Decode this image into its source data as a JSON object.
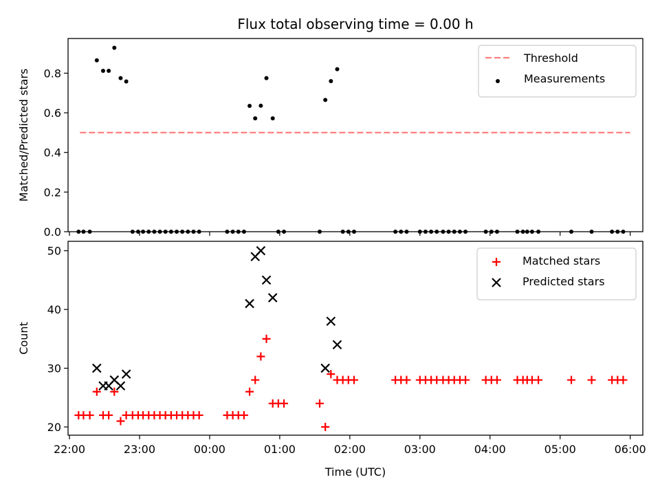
{
  "chart_data": [
    {
      "type": "scatter",
      "title": "Flux total observing time = 0.00 h",
      "xlabel": "",
      "ylabel": "Matched/Predicted stars",
      "ylim": [
        0,
        0.975
      ],
      "yticks": [
        "0.0",
        "0.2",
        "0.4",
        "0.6",
        "0.8"
      ],
      "ytick_values": [
        0,
        0.2,
        0.4,
        0.6,
        0.8
      ],
      "xlim": [
        21.98,
        30.18
      ],
      "x_units": "hours since 00:00 of first night (x > 24 means next day)",
      "grid": false,
      "legend": {
        "placement": "upper right",
        "entries": [
          "Threshold",
          "Measurements"
        ]
      },
      "threshold": {
        "name": "Threshold",
        "x": [
          22.15,
          30.0
        ],
        "y": 0.5,
        "color": "#ff7f7f",
        "style": "dashed"
      },
      "series": [
        {
          "name": "Measurements",
          "color": "#000000",
          "marker": "dot",
          "points": [
            [
              22.13,
              0
            ],
            [
              22.2,
              0
            ],
            [
              22.29,
              0
            ],
            [
              22.39,
              0.865
            ],
            [
              22.48,
              0.812
            ],
            [
              22.56,
              0.812
            ],
            [
              22.64,
              0.928
            ],
            [
              22.73,
              0.775
            ],
            [
              22.81,
              0.758
            ],
            [
              22.9,
              0
            ],
            [
              22.98,
              0
            ],
            [
              23.05,
              0
            ],
            [
              23.13,
              0
            ],
            [
              23.21,
              0
            ],
            [
              23.29,
              0
            ],
            [
              23.37,
              0
            ],
            [
              23.45,
              0
            ],
            [
              23.53,
              0
            ],
            [
              23.61,
              0
            ],
            [
              23.69,
              0
            ],
            [
              23.77,
              0
            ],
            [
              23.85,
              0
            ],
            [
              24.25,
              0
            ],
            [
              24.33,
              0
            ],
            [
              24.41,
              0
            ],
            [
              24.49,
              0
            ],
            [
              24.57,
              0.635
            ],
            [
              24.65,
              0.572
            ],
            [
              24.73,
              0.636
            ],
            [
              24.81,
              0.775
            ],
            [
              24.9,
              0.572
            ],
            [
              24.98,
              0
            ],
            [
              25.06,
              0
            ],
            [
              25.57,
              0
            ],
            [
              25.65,
              0.665
            ],
            [
              25.73,
              0.76
            ],
            [
              25.82,
              0.82
            ],
            [
              25.9,
              0
            ],
            [
              25.98,
              0
            ],
            [
              26.06,
              0
            ],
            [
              26.65,
              0
            ],
            [
              26.73,
              0
            ],
            [
              26.81,
              0
            ],
            [
              27.0,
              0
            ],
            [
              27.08,
              0
            ],
            [
              27.16,
              0
            ],
            [
              27.24,
              0
            ],
            [
              27.33,
              0
            ],
            [
              27.41,
              0
            ],
            [
              27.49,
              0
            ],
            [
              27.57,
              0
            ],
            [
              27.65,
              0
            ],
            [
              27.94,
              0
            ],
            [
              28.02,
              0
            ],
            [
              28.1,
              0
            ],
            [
              28.39,
              0
            ],
            [
              28.47,
              0
            ],
            [
              28.53,
              0
            ],
            [
              28.6,
              0
            ],
            [
              28.69,
              0
            ],
            [
              29.16,
              0
            ],
            [
              29.45,
              0
            ],
            [
              29.74,
              0
            ],
            [
              29.82,
              0
            ],
            [
              29.9,
              0
            ]
          ]
        }
      ]
    },
    {
      "type": "scatter",
      "title": "",
      "xlabel": "Time (UTC)",
      "ylabel": "Count",
      "ylim": [
        18.6,
        51.6
      ],
      "yticks": [
        "20",
        "30",
        "40",
        "50"
      ],
      "ytick_values": [
        20,
        30,
        40,
        50
      ],
      "xlim": [
        21.98,
        30.18
      ],
      "xticks": [
        "22:00",
        "23:00",
        "00:00",
        "01:00",
        "02:00",
        "03:00",
        "04:00",
        "05:00",
        "06:00"
      ],
      "xtick_values": [
        22,
        23,
        24,
        25,
        26,
        27,
        28,
        29,
        30
      ],
      "grid": false,
      "legend": {
        "placement": "upper right",
        "entries": [
          "Matched stars",
          "Predicted stars"
        ]
      },
      "series": [
        {
          "name": "Matched stars",
          "color": "#ff0000",
          "marker": "plus",
          "points": [
            [
              22.13,
              22
            ],
            [
              22.2,
              22
            ],
            [
              22.29,
              22
            ],
            [
              22.39,
              26
            ],
            [
              22.48,
              22
            ],
            [
              22.56,
              22
            ],
            [
              22.64,
              26
            ],
            [
              22.73,
              21
            ],
            [
              22.81,
              22
            ],
            [
              22.9,
              22
            ],
            [
              22.98,
              22
            ],
            [
              23.05,
              22
            ],
            [
              23.13,
              22
            ],
            [
              23.21,
              22
            ],
            [
              23.29,
              22
            ],
            [
              23.37,
              22
            ],
            [
              23.45,
              22
            ],
            [
              23.53,
              22
            ],
            [
              23.61,
              22
            ],
            [
              23.69,
              22
            ],
            [
              23.77,
              22
            ],
            [
              23.85,
              22
            ],
            [
              24.25,
              22
            ],
            [
              24.33,
              22
            ],
            [
              24.41,
              22
            ],
            [
              24.49,
              22
            ],
            [
              24.57,
              26
            ],
            [
              24.65,
              28
            ],
            [
              24.73,
              32
            ],
            [
              24.81,
              35
            ],
            [
              24.9,
              24
            ],
            [
              24.98,
              24
            ],
            [
              25.06,
              24
            ],
            [
              25.57,
              24
            ],
            [
              25.65,
              20
            ],
            [
              25.73,
              29
            ],
            [
              25.82,
              28
            ],
            [
              25.9,
              28
            ],
            [
              25.98,
              28
            ],
            [
              26.06,
              28
            ],
            [
              26.65,
              28
            ],
            [
              26.73,
              28
            ],
            [
              26.81,
              28
            ],
            [
              27.0,
              28
            ],
            [
              27.08,
              28
            ],
            [
              27.16,
              28
            ],
            [
              27.24,
              28
            ],
            [
              27.33,
              28
            ],
            [
              27.41,
              28
            ],
            [
              27.49,
              28
            ],
            [
              27.57,
              28
            ],
            [
              27.65,
              28
            ],
            [
              27.94,
              28
            ],
            [
              28.02,
              28
            ],
            [
              28.1,
              28
            ],
            [
              28.39,
              28
            ],
            [
              28.47,
              28
            ],
            [
              28.53,
              28
            ],
            [
              28.6,
              28
            ],
            [
              28.69,
              28
            ],
            [
              29.16,
              28
            ],
            [
              29.45,
              28
            ],
            [
              29.74,
              28
            ],
            [
              29.82,
              28
            ],
            [
              29.9,
              28
            ]
          ]
        },
        {
          "name": "Predicted stars",
          "color": "#000000",
          "marker": "x",
          "points": [
            [
              22.39,
              30
            ],
            [
              22.48,
              27
            ],
            [
              22.56,
              27
            ],
            [
              22.64,
              28
            ],
            [
              22.73,
              27
            ],
            [
              22.81,
              29
            ],
            [
              24.57,
              41
            ],
            [
              24.65,
              49
            ],
            [
              24.73,
              50
            ],
            [
              24.81,
              45
            ],
            [
              24.9,
              42
            ],
            [
              25.65,
              30
            ],
            [
              25.73,
              38
            ],
            [
              25.82,
              34
            ]
          ]
        }
      ]
    }
  ]
}
